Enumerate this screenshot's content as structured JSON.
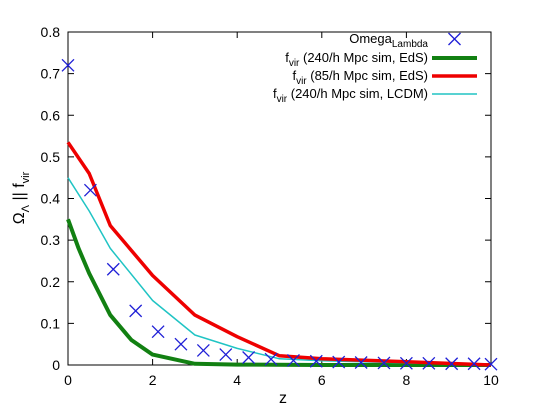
{
  "chart_data": {
    "type": "line",
    "xlabel": "z",
    "ylabel": {
      "main": "Ω",
      "main_sub": "Λ",
      "middle": " || f",
      "tail_sub": "vir"
    },
    "xlim": [
      0,
      10
    ],
    "ylim": [
      0,
      0.8
    ],
    "xticks": [
      0,
      2,
      4,
      6,
      8,
      10
    ],
    "yticks": [
      0,
      0.1,
      0.2,
      0.3,
      0.4,
      0.5,
      0.6,
      0.7,
      0.8
    ],
    "grid": false,
    "legend_position": "top-right",
    "series": [
      {
        "name": "Omega_Lambda",
        "name_parts": [
          "Omega",
          "Lambda",
          ""
        ],
        "style": "markers",
        "marker": "x",
        "color": "#1f1fd6",
        "x": [
          0.0,
          0.53,
          1.07,
          1.6,
          2.13,
          2.67,
          3.2,
          3.73,
          4.27,
          4.8,
          5.33,
          5.87,
          6.4,
          6.93,
          7.47,
          8.0,
          8.53,
          9.07,
          9.6,
          10.0
        ],
        "y": [
          0.72,
          0.42,
          0.23,
          0.13,
          0.08,
          0.05,
          0.035,
          0.025,
          0.018,
          0.014,
          0.011,
          0.009,
          0.007,
          0.006,
          0.005,
          0.004,
          0.004,
          0.003,
          0.003,
          0.002
        ]
      },
      {
        "name": "f_vir (240/h Mpc sim, EdS)",
        "name_parts": [
          "f",
          "vir",
          " (240/h Mpc sim, EdS)"
        ],
        "style": "line",
        "color": "#128012",
        "line_width": 4,
        "x": [
          0.0,
          0.25,
          0.5,
          1.0,
          1.5,
          2.0,
          3.0,
          4.0,
          6.0,
          10.0
        ],
        "y": [
          0.35,
          0.28,
          0.22,
          0.12,
          0.06,
          0.025,
          0.003,
          0.001,
          0.0,
          0.0
        ]
      },
      {
        "name": "f_vir (85/h Mpc sim, EdS)",
        "name_parts": [
          "f",
          "vir",
          " (85/h Mpc sim, EdS)"
        ],
        "style": "line",
        "color": "#ee0000",
        "line_width": 3.5,
        "x": [
          0.0,
          0.5,
          1.0,
          2.0,
          3.0,
          4.0,
          5.0,
          6.0,
          8.0,
          10.0
        ],
        "y": [
          0.535,
          0.46,
          0.335,
          0.215,
          0.12,
          0.068,
          0.022,
          0.015,
          0.008,
          0.0
        ]
      },
      {
        "name": "f_vir (240/h Mpc sim, LCDM)",
        "name_parts": [
          "f",
          "vir",
          " (240/h Mpc sim, LCDM)"
        ],
        "style": "line",
        "color": "#20c4c4",
        "line_width": 1.5,
        "x": [
          0.0,
          0.5,
          1.0,
          2.0,
          3.0,
          4.0,
          5.0,
          6.0,
          8.0,
          10.0
        ],
        "y": [
          0.45,
          0.37,
          0.28,
          0.155,
          0.072,
          0.04,
          0.015,
          0.01,
          0.005,
          0.0
        ]
      }
    ]
  }
}
